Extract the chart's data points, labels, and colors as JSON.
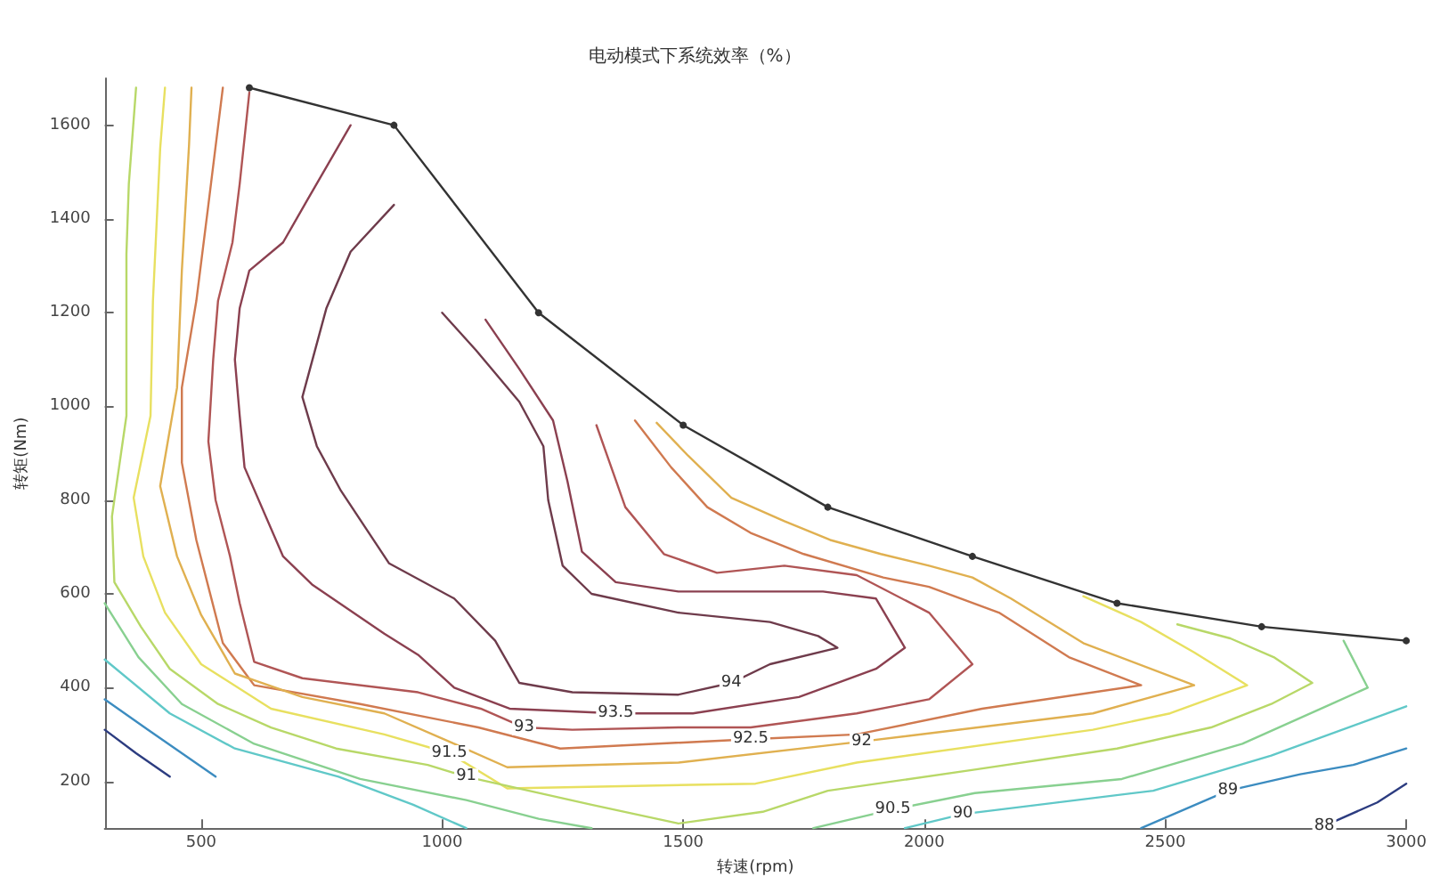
{
  "chart_data": {
    "type": "line",
    "title": "电动模式下系统效率（%）",
    "xlabel": "转速(rpm)",
    "ylabel": "转矩(Nm)",
    "xlim": [
      300,
      3000
    ],
    "ylim": [
      100,
      1700
    ],
    "xticks": [
      500,
      1000,
      1500,
      2000,
      2500,
      3000
    ],
    "yticks": [
      200,
      400,
      600,
      800,
      1000,
      1200,
      1400,
      1600
    ],
    "grid": false,
    "legend": false,
    "marker": "none",
    "line_style": "solid",
    "series": [
      {
        "name": "94",
        "color": "#6e3b4b",
        "x": [
          1000,
          1070,
          1160,
          1210,
          1220,
          1250,
          1310,
          1490,
          1680,
          1780,
          1820,
          1680,
          1600,
          1490,
          1270,
          1160,
          1110,
          1025,
          890,
          790,
          740,
          710,
          760,
          810,
          900
        ],
        "values": [
          1200,
          1120,
          1010,
          915,
          800,
          660,
          600,
          560,
          540,
          510,
          485,
          450,
          410,
          385,
          390,
          410,
          500,
          590,
          665,
          820,
          915,
          1020,
          1210,
          1330,
          1430
        ]
      },
      {
        "name": "93.5",
        "color": "#8b4050",
        "x": [
          810,
          720,
          670,
          600,
          580,
          570,
          580,
          590,
          670,
          730,
          880,
          950,
          1025,
          1140,
          1360,
          1520,
          1740,
          1900,
          1960,
          1900,
          1790,
          1640,
          1490,
          1360,
          1290,
          1260,
          1230,
          1160,
          1090
        ],
        "values": [
          1600,
          1440,
          1350,
          1290,
          1210,
          1100,
          980,
          870,
          680,
          620,
          515,
          470,
          400,
          355,
          345,
          345,
          380,
          440,
          485,
          590,
          605,
          605,
          605,
          625,
          690,
          840,
          970,
          1080,
          1185
        ]
      },
      {
        "name": "93",
        "color": "#b05555",
        "x": [
          600,
          580,
          565,
          535,
          525,
          515,
          530,
          560,
          580,
          610,
          710,
          950,
          1080,
          1170,
          1270,
          1490,
          1640,
          1860,
          2010,
          2100,
          2010,
          1860,
          1710,
          1570,
          1460,
          1380,
          1320
        ],
        "values": [
          1670,
          1475,
          1350,
          1225,
          1100,
          925,
          800,
          680,
          580,
          455,
          420,
          390,
          355,
          315,
          310,
          315,
          315,
          345,
          375,
          450,
          560,
          640,
          660,
          645,
          685,
          785,
          960
        ]
      },
      {
        "name": "92.5",
        "color": "#d07a50",
        "x": [
          545,
          515,
          490,
          460,
          460,
          490,
          515,
          545,
          610,
          830,
          1075,
          1245,
          1640,
          1860,
          2120,
          2450,
          2300,
          2155,
          2010,
          1915,
          1750,
          1640,
          1550,
          1475,
          1400
        ],
        "values": [
          1680,
          1430,
          1225,
          1040,
          880,
          715,
          615,
          495,
          405,
          365,
          315,
          270,
          290,
          300,
          355,
          405,
          465,
          560,
          615,
          635,
          685,
          730,
          785,
          870,
          970
        ]
      },
      {
        "name": "92",
        "color": "#e0b050",
        "x": [
          480,
          475,
          460,
          450,
          415,
          450,
          500,
          570,
          710,
          880,
          1025,
          1135,
          1490,
          1870,
          2350,
          2560,
          2330,
          2180,
          2100,
          2010,
          1910,
          1805,
          1710,
          1600,
          1510,
          1445
        ],
        "values": [
          1680,
          1560,
          1290,
          1040,
          830,
          680,
          555,
          430,
          380,
          345,
          280,
          230,
          240,
          285,
          345,
          405,
          495,
          590,
          635,
          660,
          685,
          715,
          755,
          805,
          895,
          965
        ]
      },
      {
        "name": "91.5",
        "color": "#e8e060",
        "x": [
          425,
          415,
          400,
          395,
          360,
          380,
          425,
          500,
          645,
          880,
          1015,
          1135,
          1650,
          1860,
          2350,
          2510,
          2670,
          2560,
          2450,
          2330
        ],
        "values": [
          1680,
          1550,
          1225,
          980,
          805,
          680,
          560,
          450,
          355,
          300,
          260,
          185,
          195,
          240,
          310,
          345,
          405,
          475,
          540,
          595
        ]
      },
      {
        "name": "91",
        "color": "#b8d868",
        "x": [
          365,
          350,
          345,
          345,
          315,
          320,
          375,
          435,
          535,
          645,
          780,
          970,
          1050,
          1310,
          1490,
          1665,
          1800,
          2105,
          2400,
          2595,
          2720,
          2805,
          2725,
          2635,
          2525
        ],
        "values": [
          1680,
          1475,
          1325,
          980,
          765,
          625,
          530,
          440,
          365,
          315,
          270,
          235,
          210,
          150,
          110,
          135,
          180,
          225,
          270,
          315,
          365,
          410,
          465,
          505,
          535
        ]
      },
      {
        "name": "90.5",
        "color": "#88d090",
        "x": [
          300,
          370,
          460,
          610,
          830,
          1050,
          1200,
          1310,
          1500,
          1770,
          1935,
          2105,
          2410,
          2660,
          2845,
          2920,
          2870
        ],
        "values": [
          580,
          465,
          365,
          280,
          205,
          160,
          120,
          100,
          null,
          100,
          140,
          175,
          205,
          280,
          365,
          400,
          500
        ]
      },
      {
        "name": "90",
        "color": "#60c8c8",
        "x": [
          300,
          435,
          570,
          785,
          940,
          1050,
          1500,
          1960,
          2080,
          2475,
          2720,
          3000
        ],
        "values": [
          460,
          345,
          270,
          210,
          150,
          100,
          null,
          100,
          130,
          180,
          255,
          360
        ]
      },
      {
        "name": "89",
        "color": "#3c8cc0",
        "x": [
          300,
          390,
          460,
          530,
          1500,
          2450,
          2630,
          2780,
          2890,
          3000
        ],
        "values": [
          375,
          310,
          260,
          210,
          null,
          100,
          180,
          215,
          235,
          270
        ]
      },
      {
        "name": "88",
        "color": "#2c3c80",
        "x": [
          300,
          365,
          435,
          1500,
          2830,
          2940,
          3000
        ],
        "values": [
          310,
          260,
          210,
          null,
          105,
          155,
          195
        ]
      },
      {
        "color": "#333333",
        "marker": "circle",
        "x": [
          600,
          900,
          1200,
          1500,
          1800,
          2100,
          2400,
          2700,
          3000
        ],
        "values": [
          1680,
          1600,
          1200,
          960,
          785,
          680,
          580,
          530,
          500
        ]
      }
    ]
  }
}
